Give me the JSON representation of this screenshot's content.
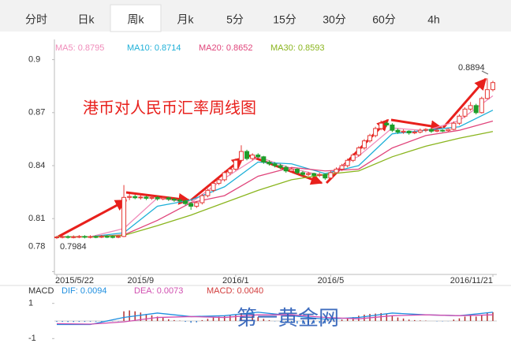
{
  "tabs": [
    "分时",
    "日k",
    "周k",
    "月k",
    "5分",
    "15分",
    "30分",
    "60分",
    "4h"
  ],
  "active_tab": "周k",
  "chart_data": {
    "type": "candlestick",
    "annotation": "港币对人民币汇率周线图",
    "watermark": "第一黄金网",
    "up_color": "#e53935",
    "down_color": "#1e9e2a",
    "ylim": [
      0.7775,
      0.9025
    ],
    "yticks": [
      0.78,
      0.81,
      0.84,
      0.87,
      0.9
    ],
    "xlim": [
      0,
      78
    ],
    "xticks": [
      {
        "value": 0,
        "label": "2015/5/22"
      },
      {
        "value": 15,
        "label": "2015/9"
      },
      {
        "value": 32,
        "label": "2016/1"
      },
      {
        "value": 49,
        "label": "2016/5"
      },
      {
        "value": 78,
        "label": "2016/11/21"
      }
    ],
    "max_label": 0.8894,
    "min_label": 0.7984,
    "candles": [
      [
        0.7994,
        0.8003,
        0.7984,
        0.7996
      ],
      [
        0.7996,
        0.8006,
        0.7988,
        0.7998
      ],
      [
        0.7998,
        0.8005,
        0.7987,
        0.7995
      ],
      [
        0.7995,
        0.8005,
        0.7988,
        0.7997
      ],
      [
        0.7997,
        0.8007,
        0.7989,
        0.7999
      ],
      [
        0.7999,
        0.8006,
        0.7988,
        0.7996
      ],
      [
        0.7996,
        0.8006,
        0.7988,
        0.7998
      ],
      [
        0.7998,
        0.8005,
        0.7989,
        0.7997
      ],
      [
        0.7997,
        0.8007,
        0.799,
        0.7999
      ],
      [
        0.7999,
        0.8006,
        0.799,
        0.7998
      ],
      [
        0.7998,
        0.8005,
        0.7988,
        0.7996
      ],
      [
        0.7996,
        0.8007,
        0.7989,
        0.7999
      ],
      [
        0.7999,
        0.829,
        0.7995,
        0.822
      ],
      [
        0.822,
        0.824,
        0.8205,
        0.8225
      ],
      [
        0.8225,
        0.8235,
        0.821,
        0.8218
      ],
      [
        0.8218,
        0.8232,
        0.8208,
        0.8222
      ],
      [
        0.8222,
        0.823,
        0.8205,
        0.8215
      ],
      [
        0.8215,
        0.823,
        0.8206,
        0.822
      ],
      [
        0.822,
        0.8228,
        0.8202,
        0.8212
      ],
      [
        0.8212,
        0.8226,
        0.8204,
        0.8218
      ],
      [
        0.8218,
        0.8224,
        0.82,
        0.821
      ],
      [
        0.821,
        0.8218,
        0.8195,
        0.8205
      ],
      [
        0.8205,
        0.8214,
        0.819,
        0.82
      ],
      [
        0.82,
        0.8208,
        0.8175,
        0.8185
      ],
      [
        0.8185,
        0.8195,
        0.815,
        0.817
      ],
      [
        0.817,
        0.82,
        0.816,
        0.819
      ],
      [
        0.819,
        0.824,
        0.818,
        0.823
      ],
      [
        0.823,
        0.827,
        0.822,
        0.826
      ],
      [
        0.826,
        0.831,
        0.825,
        0.83
      ],
      [
        0.83,
        0.833,
        0.829,
        0.832
      ],
      [
        0.832,
        0.837,
        0.831,
        0.836
      ],
      [
        0.836,
        0.839,
        0.8345,
        0.838
      ],
      [
        0.838,
        0.844,
        0.837,
        0.843
      ],
      [
        0.843,
        0.8515,
        0.842,
        0.848
      ],
      [
        0.848,
        0.849,
        0.843,
        0.844
      ],
      [
        0.844,
        0.847,
        0.843,
        0.846
      ],
      [
        0.846,
        0.847,
        0.844,
        0.845
      ],
      [
        0.845,
        0.8455,
        0.841,
        0.842
      ],
      [
        0.842,
        0.843,
        0.84,
        0.841
      ],
      [
        0.841,
        0.842,
        0.839,
        0.84
      ],
      [
        0.84,
        0.841,
        0.838,
        0.839
      ],
      [
        0.839,
        0.84,
        0.836,
        0.837
      ],
      [
        0.837,
        0.839,
        0.836,
        0.838
      ],
      [
        0.838,
        0.8385,
        0.835,
        0.836
      ],
      [
        0.836,
        0.837,
        0.834,
        0.835
      ],
      [
        0.835,
        0.8365,
        0.834,
        0.8355
      ],
      [
        0.8355,
        0.836,
        0.8335,
        0.8345
      ],
      [
        0.8345,
        0.836,
        0.8335,
        0.835
      ],
      [
        0.835,
        0.8355,
        0.832,
        0.833
      ],
      [
        0.833,
        0.837,
        0.8325,
        0.836
      ],
      [
        0.836,
        0.839,
        0.835,
        0.838
      ],
      [
        0.838,
        0.841,
        0.837,
        0.84
      ],
      [
        0.84,
        0.844,
        0.839,
        0.843
      ],
      [
        0.843,
        0.847,
        0.842,
        0.846
      ],
      [
        0.846,
        0.851,
        0.845,
        0.85
      ],
      [
        0.85,
        0.855,
        0.849,
        0.854
      ],
      [
        0.854,
        0.858,
        0.853,
        0.857
      ],
      [
        0.857,
        0.862,
        0.856,
        0.861
      ],
      [
        0.861,
        0.8655,
        0.86,
        0.864
      ],
      [
        0.864,
        0.865,
        0.862,
        0.863
      ],
      [
        0.863,
        0.864,
        0.859,
        0.86
      ],
      [
        0.86,
        0.861,
        0.858,
        0.859
      ],
      [
        0.859,
        0.8605,
        0.858,
        0.8595
      ],
      [
        0.8595,
        0.86,
        0.8575,
        0.8585
      ],
      [
        0.8585,
        0.86,
        0.8578,
        0.859
      ],
      [
        0.859,
        0.861,
        0.8582,
        0.86
      ],
      [
        0.86,
        0.8612,
        0.859,
        0.8605
      ],
      [
        0.8605,
        0.861,
        0.8585,
        0.8595
      ],
      [
        0.8595,
        0.8608,
        0.8588,
        0.86
      ],
      [
        0.86,
        0.8605,
        0.859,
        0.8598
      ],
      [
        0.8598,
        0.8612,
        0.8592,
        0.8605
      ],
      [
        0.8605,
        0.865,
        0.86,
        0.864
      ],
      [
        0.864,
        0.869,
        0.863,
        0.868
      ],
      [
        0.868,
        0.873,
        0.867,
        0.872
      ],
      [
        0.872,
        0.876,
        0.871,
        0.874
      ],
      [
        0.874,
        0.875,
        0.869,
        0.87
      ],
      [
        0.87,
        0.879,
        0.8695,
        0.878
      ],
      [
        0.878,
        0.8894,
        0.8775,
        0.883
      ],
      [
        0.883,
        0.888,
        0.882,
        0.887
      ]
    ],
    "ma_series": [
      {
        "name": "MA5: 0.8795",
        "color": "#f08cba",
        "x": [
          0,
          6,
          12,
          18,
          24,
          30,
          36,
          42,
          48,
          54,
          60,
          66,
          72,
          78
        ],
        "values": [
          0.7997,
          0.7997,
          0.8044,
          0.8217,
          0.819,
          0.8328,
          0.845,
          0.8384,
          0.834,
          0.8454,
          0.8613,
          0.8598,
          0.8655,
          0.8795
        ]
      },
      {
        "name": "MA10: 0.8714",
        "color": "#1fb0d8",
        "x": [
          0,
          6,
          12,
          18,
          24,
          30,
          36,
          42,
          48,
          54,
          60,
          66,
          72,
          78
        ],
        "values": [
          0.7997,
          0.7997,
          0.802,
          0.817,
          0.8205,
          0.828,
          0.842,
          0.841,
          0.8355,
          0.84,
          0.858,
          0.86,
          0.862,
          0.8714
        ]
      },
      {
        "name": "MA20: 0.8652",
        "color": "#e0457b",
        "x": [
          0,
          6,
          12,
          18,
          24,
          30,
          36,
          42,
          48,
          54,
          60,
          66,
          72,
          78
        ],
        "values": [
          0.7997,
          0.7997,
          0.8008,
          0.809,
          0.819,
          0.823,
          0.834,
          0.839,
          0.837,
          0.838,
          0.85,
          0.857,
          0.86,
          0.8652
        ]
      },
      {
        "name": "MA30: 0.8593",
        "color": "#8ab51e",
        "x": [
          0,
          6,
          12,
          18,
          24,
          30,
          36,
          42,
          48,
          54,
          60,
          66,
          72,
          78
        ],
        "values": [
          0.7997,
          0.7997,
          0.8005,
          0.806,
          0.812,
          0.819,
          0.826,
          0.832,
          0.835,
          0.837,
          0.845,
          0.851,
          0.8555,
          0.8593
        ]
      }
    ],
    "macd": {
      "title": "MACD",
      "ylim": [
        -1.3,
        1.3
      ],
      "yticks": [
        1,
        -1
      ],
      "hist": [
        -0.05,
        -0.05,
        -0.06,
        -0.06,
        -0.05,
        -0.05,
        -0.04,
        -0.04,
        -0.03,
        -0.03,
        -0.02,
        -0.02,
        0.55,
        0.6,
        0.55,
        0.48,
        0.4,
        0.32,
        0.25,
        0.18,
        0.1,
        0.05,
        0.02,
        -0.05,
        -0.1,
        -0.08,
        0.05,
        0.12,
        0.2,
        0.25,
        0.3,
        0.32,
        0.38,
        0.45,
        0.35,
        0.3,
        0.22,
        0.12,
        0.05,
        -0.02,
        -0.08,
        -0.12,
        -0.12,
        -0.15,
        -0.16,
        -0.14,
        -0.14,
        -0.12,
        -0.14,
        -0.05,
        0.02,
        0.08,
        0.15,
        0.22,
        0.3,
        0.36,
        0.4,
        0.42,
        0.45,
        0.38,
        0.28,
        0.2,
        0.14,
        0.08,
        0.05,
        0.03,
        0.02,
        0.0,
        -0.02,
        -0.02,
        -0.01,
        0.08,
        0.15,
        0.25,
        0.3,
        0.25,
        0.35,
        0.45,
        0.5
      ],
      "series": [
        {
          "name": "DIF: 0.0094",
          "color": "#1f8fe0",
          "x": [
            0,
            6,
            12,
            18,
            24,
            30,
            36,
            42,
            48,
            54,
            60,
            66,
            72,
            78
          ],
          "values": [
            -0.2,
            -0.2,
            0.2,
            0.45,
            0.25,
            0.3,
            0.5,
            0.3,
            0.1,
            0.2,
            0.45,
            0.35,
            0.3,
            0.5
          ]
        },
        {
          "name": "DEA: 0.0073",
          "color": "#d04fb0",
          "x": [
            0,
            6,
            12,
            18,
            24,
            30,
            36,
            42,
            48,
            54,
            60,
            66,
            72,
            78
          ],
          "values": [
            -0.15,
            -0.18,
            -0.05,
            0.2,
            0.25,
            0.2,
            0.35,
            0.35,
            0.2,
            0.12,
            0.3,
            0.35,
            0.3,
            0.35
          ]
        },
        {
          "name": "MACD: 0.0040",
          "color": "#d23c3c"
        }
      ]
    }
  }
}
